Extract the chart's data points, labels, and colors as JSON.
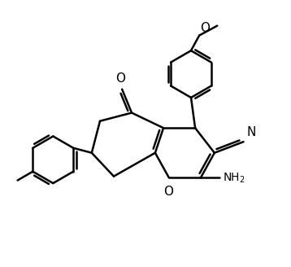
{
  "background_color": "#ffffff",
  "line_color": "#000000",
  "line_width": 1.8,
  "font_size": 10,
  "figsize": [
    3.58,
    3.28
  ],
  "dpi": 100,
  "xlim": [
    0,
    10
  ],
  "ylim": [
    0,
    9.5
  ]
}
